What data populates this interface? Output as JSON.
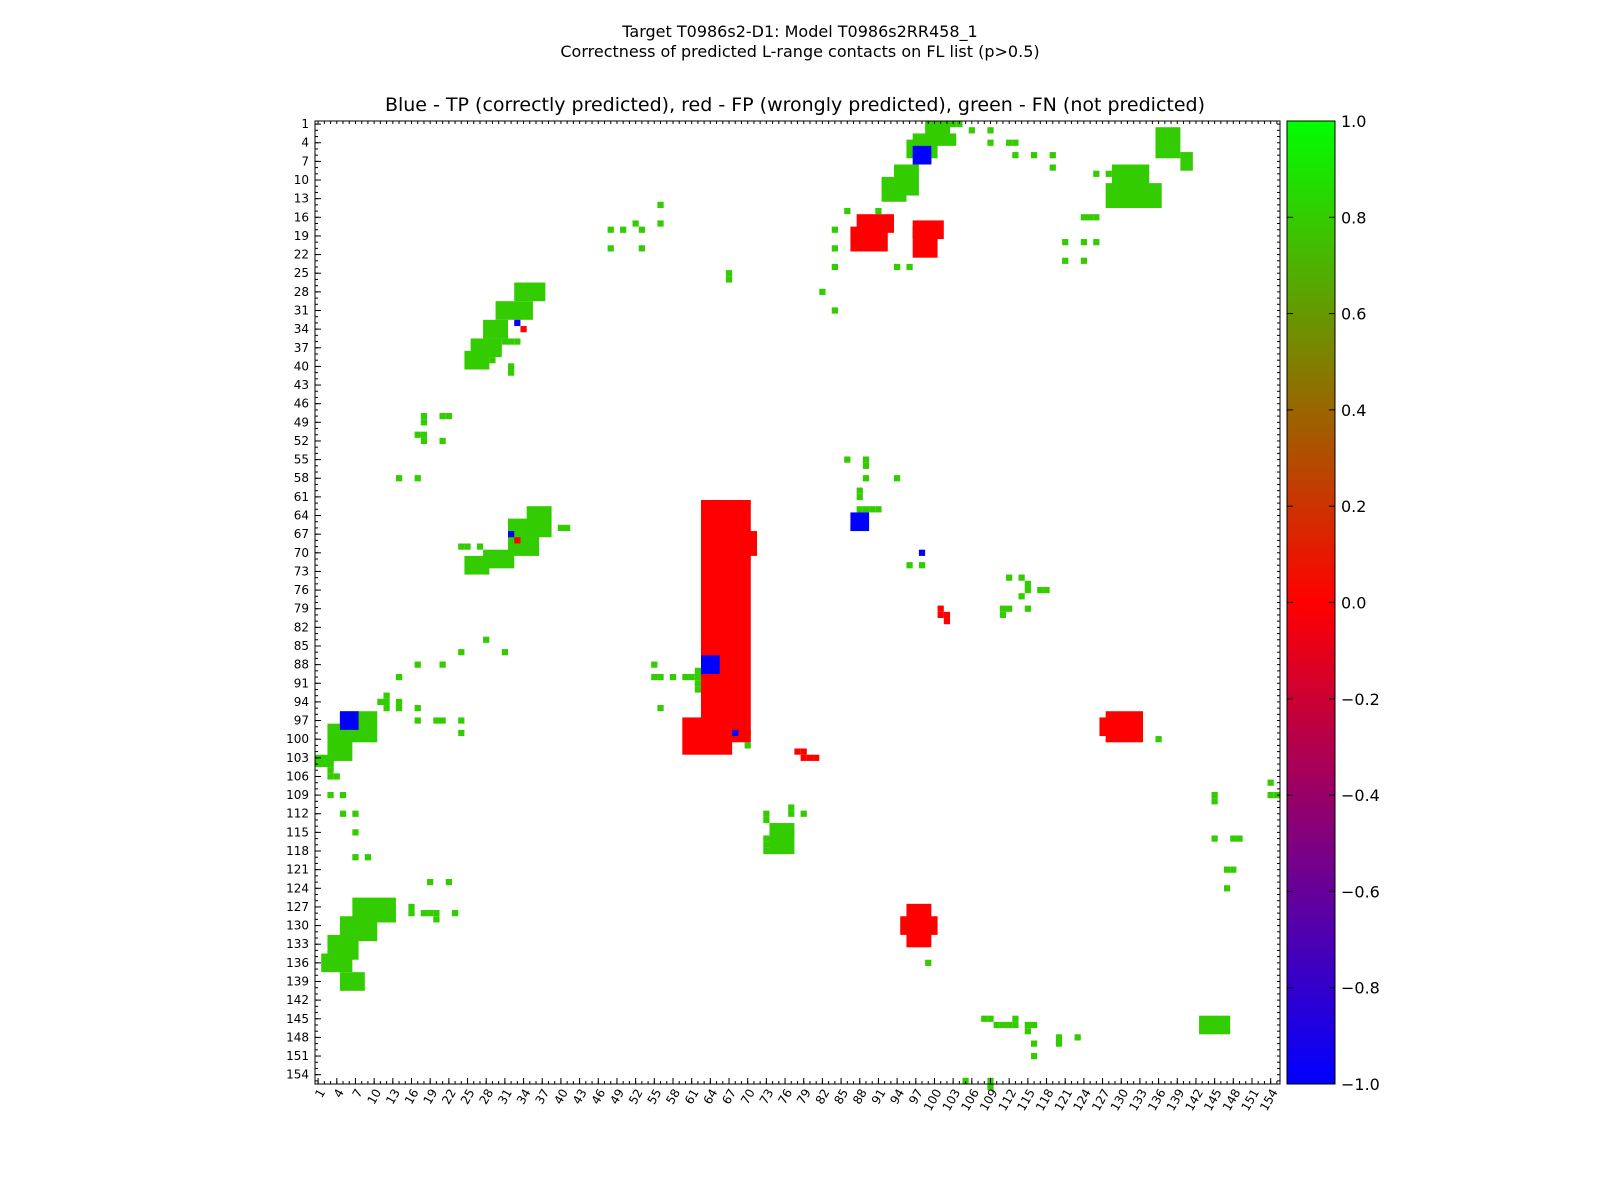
{
  "figure": {
    "title_line1": "Target T0986s2-D1: Model T0986s2RR458_1",
    "title_line2": "Correctness of predicted L-range contacts on FL list (p>0.5)"
  },
  "colors": {
    "tp": "#0000ff",
    "fp": "#ff0000",
    "fn": "#33cc00",
    "background": "#ffffff"
  },
  "chart_data": {
    "type": "heatmap",
    "title": "Blue - TP (correctly predicted), red - FP (wrongly predicted), green - FN (not predicted)",
    "xlabel": "",
    "ylabel": "",
    "xlim": [
      1,
      155
    ],
    "ylim": [
      1,
      155
    ],
    "x_ticks": [
      "1",
      "4",
      "7",
      "10",
      "13",
      "16",
      "19",
      "22",
      "25",
      "28",
      "31",
      "34",
      "37",
      "40",
      "43",
      "46",
      "49",
      "52",
      "55",
      "58",
      "61",
      "64",
      "67",
      "70",
      "73",
      "76",
      "79",
      "82",
      "85",
      "88",
      "91",
      "94",
      "97",
      "100",
      "103",
      "106",
      "109",
      "112",
      "115",
      "118",
      "121",
      "124",
      "127",
      "130",
      "133",
      "136",
      "139",
      "142",
      "145",
      "148",
      "151",
      "154"
    ],
    "y_ticks": [
      "1",
      "4",
      "7",
      "10",
      "13",
      "16",
      "19",
      "22",
      "25",
      "28",
      "31",
      "34",
      "37",
      "40",
      "43",
      "46",
      "49",
      "52",
      "55",
      "58",
      "61",
      "64",
      "67",
      "70",
      "73",
      "76",
      "79",
      "82",
      "85",
      "88",
      "91",
      "94",
      "97",
      "100",
      "103",
      "106",
      "109",
      "112",
      "115",
      "118",
      "121",
      "124",
      "127",
      "130",
      "133",
      "136",
      "139",
      "142",
      "145",
      "148",
      "151",
      "154"
    ],
    "colorbar": {
      "range": [
        -1.0,
        1.0
      ],
      "ticks": [
        "1.0",
        "0.8",
        "0.6",
        "0.4",
        "0.2",
        "0.0",
        "−0.2",
        "−0.4",
        "−0.6",
        "−0.8",
        "−1.0"
      ]
    },
    "rect_cells": {
      "fp": [
        [
          97,
          17,
          101,
          19
        ],
        [
          97,
          18,
          100,
          22
        ],
        [
          127,
          97,
          131,
          99
        ],
        [
          128,
          96,
          133,
          100
        ],
        [
          60,
          97,
          67,
          102
        ],
        [
          63,
          62,
          70,
          100
        ],
        [
          63,
          64,
          65,
          67
        ],
        [
          63,
          67,
          71,
          70
        ],
        [
          88,
          16,
          93,
          18
        ],
        [
          87,
          18,
          92,
          21
        ],
        [
          96,
          127,
          99,
          133
        ],
        [
          95,
          129,
          100,
          131
        ]
      ],
      "fn": [
        [
          99,
          1,
          102,
          3
        ],
        [
          97,
          3,
          103,
          4
        ],
        [
          96,
          4,
          100,
          6
        ],
        [
          94,
          8,
          97,
          12
        ],
        [
          92,
          10,
          95,
          13
        ],
        [
          128,
          11,
          136,
          14
        ],
        [
          129,
          8,
          134,
          12
        ],
        [
          136,
          2,
          139,
          6
        ],
        [
          140,
          6,
          141,
          8
        ],
        [
          33,
          27,
          37,
          29
        ],
        [
          30,
          30,
          35,
          32
        ],
        [
          28,
          33,
          31,
          35
        ],
        [
          26,
          36,
          30,
          38
        ],
        [
          25,
          38,
          28,
          40
        ],
        [
          35,
          63,
          38,
          67
        ],
        [
          32,
          65,
          36,
          70
        ],
        [
          28,
          70,
          32,
          72
        ],
        [
          25,
          71,
          28,
          73
        ],
        [
          5,
          96,
          10,
          100
        ],
        [
          3,
          98,
          6,
          103
        ],
        [
          1,
          103,
          3,
          104
        ],
        [
          7,
          126,
          13,
          129
        ],
        [
          5,
          129,
          10,
          132
        ],
        [
          3,
          132,
          7,
          135
        ],
        [
          2,
          135,
          6,
          137
        ],
        [
          5,
          138,
          8,
          140
        ],
        [
          74,
          114,
          77,
          118
        ],
        [
          143,
          145,
          147,
          147
        ]
      ],
      "tp": [
        [
          97,
          5,
          99,
          7
        ],
        [
          5,
          96,
          7,
          98
        ],
        [
          87,
          64,
          89,
          66
        ],
        [
          63,
          87,
          65,
          89
        ]
      ]
    },
    "fn_points": [
      [
        103,
        1
      ],
      [
        104,
        1
      ],
      [
        106,
        2
      ],
      [
        109,
        2
      ],
      [
        109,
        4
      ],
      [
        112,
        4
      ],
      [
        113,
        4
      ],
      [
        113,
        6
      ],
      [
        116,
        6
      ],
      [
        119,
        6
      ],
      [
        119,
        8
      ],
      [
        126,
        9
      ],
      [
        128,
        9
      ],
      [
        124,
        16
      ],
      [
        125,
        16
      ],
      [
        126,
        16
      ],
      [
        121,
        20
      ],
      [
        124,
        20
      ],
      [
        126,
        20
      ],
      [
        121,
        23
      ],
      [
        124,
        23
      ],
      [
        86,
        15
      ],
      [
        91,
        15
      ],
      [
        84,
        18
      ],
      [
        89,
        18
      ],
      [
        84,
        21
      ],
      [
        84,
        24
      ],
      [
        94,
        24
      ],
      [
        96,
        24
      ],
      [
        82,
        28
      ],
      [
        84,
        31
      ],
      [
        67,
        25
      ],
      [
        67,
        26
      ],
      [
        56,
        14
      ],
      [
        56,
        17
      ],
      [
        48,
        18
      ],
      [
        50,
        18
      ],
      [
        53,
        18
      ],
      [
        48,
        21
      ],
      [
        53,
        21
      ],
      [
        52,
        17
      ],
      [
        29,
        38
      ],
      [
        29,
        39
      ],
      [
        30,
        37
      ],
      [
        31,
        36
      ],
      [
        32,
        36
      ],
      [
        33,
        36
      ],
      [
        32,
        40
      ],
      [
        32,
        41
      ],
      [
        18,
        48
      ],
      [
        21,
        48
      ],
      [
        22,
        48
      ],
      [
        18,
        49
      ],
      [
        17,
        51
      ],
      [
        18,
        51
      ],
      [
        18,
        52
      ],
      [
        21,
        52
      ],
      [
        14,
        58
      ],
      [
        17,
        58
      ],
      [
        86,
        55
      ],
      [
        89,
        55
      ],
      [
        89,
        56
      ],
      [
        89,
        58
      ],
      [
        94,
        58
      ],
      [
        88,
        60
      ],
      [
        88,
        61
      ],
      [
        88,
        63
      ],
      [
        89,
        63
      ],
      [
        90,
        63
      ],
      [
        91,
        63
      ],
      [
        87,
        66
      ],
      [
        88,
        66
      ],
      [
        40,
        66
      ],
      [
        41,
        66
      ],
      [
        24,
        69
      ],
      [
        25,
        69
      ],
      [
        27,
        69
      ],
      [
        96,
        72
      ],
      [
        98,
        72
      ],
      [
        112,
        74
      ],
      [
        114,
        74
      ],
      [
        115,
        75
      ],
      [
        117,
        76
      ],
      [
        118,
        76
      ],
      [
        115,
        76
      ],
      [
        114,
        77
      ],
      [
        111,
        79
      ],
      [
        112,
        79
      ],
      [
        115,
        79
      ],
      [
        111,
        80
      ],
      [
        28,
        84
      ],
      [
        24,
        86
      ],
      [
        31,
        86
      ],
      [
        17,
        88
      ],
      [
        21,
        88
      ],
      [
        14,
        90
      ],
      [
        55,
        88
      ],
      [
        55,
        90
      ],
      [
        56,
        90
      ],
      [
        58,
        90
      ],
      [
        60,
        90
      ],
      [
        61,
        90
      ],
      [
        62,
        89
      ],
      [
        62,
        90
      ],
      [
        62,
        91
      ],
      [
        62,
        92
      ],
      [
        65,
        90
      ],
      [
        56,
        95
      ],
      [
        11,
        94
      ],
      [
        12,
        93
      ],
      [
        12,
        94
      ],
      [
        12,
        95
      ],
      [
        14,
        94
      ],
      [
        14,
        95
      ],
      [
        17,
        95
      ],
      [
        17,
        97
      ],
      [
        20,
        97
      ],
      [
        21,
        97
      ],
      [
        24,
        97
      ],
      [
        24,
        99
      ],
      [
        70,
        99
      ],
      [
        70,
        101
      ],
      [
        129,
        97
      ],
      [
        136,
        100
      ],
      [
        3,
        103
      ],
      [
        3,
        104
      ],
      [
        3,
        105
      ],
      [
        3,
        106
      ],
      [
        4,
        106
      ],
      [
        3,
        109
      ],
      [
        5,
        109
      ],
      [
        5,
        112
      ],
      [
        7,
        112
      ],
      [
        7,
        115
      ],
      [
        7,
        119
      ],
      [
        9,
        119
      ],
      [
        19,
        123
      ],
      [
        22,
        123
      ],
      [
        16,
        127
      ],
      [
        16,
        128
      ],
      [
        18,
        128
      ],
      [
        19,
        128
      ],
      [
        20,
        128
      ],
      [
        20,
        129
      ],
      [
        23,
        128
      ],
      [
        96,
        130
      ],
      [
        99,
        136
      ],
      [
        73,
        112
      ],
      [
        73,
        113
      ],
      [
        77,
        111
      ],
      [
        77,
        112
      ],
      [
        79,
        112
      ],
      [
        74,
        115
      ],
      [
        75,
        115
      ],
      [
        76,
        115
      ],
      [
        77,
        115
      ],
      [
        74,
        116
      ],
      [
        73,
        116
      ],
      [
        73,
        117
      ],
      [
        73,
        118
      ],
      [
        74,
        118
      ],
      [
        145,
        109
      ],
      [
        145,
        110
      ],
      [
        145,
        116
      ],
      [
        148,
        116
      ],
      [
        149,
        116
      ],
      [
        147,
        121
      ],
      [
        148,
        121
      ],
      [
        147,
        124
      ],
      [
        154,
        107
      ],
      [
        154,
        109
      ],
      [
        155,
        109
      ],
      [
        108,
        145
      ],
      [
        109,
        145
      ],
      [
        110,
        146
      ],
      [
        111,
        146
      ],
      [
        112,
        146
      ],
      [
        113,
        146
      ],
      [
        113,
        145
      ],
      [
        115,
        146
      ],
      [
        116,
        146
      ],
      [
        115,
        147
      ],
      [
        116,
        149
      ],
      [
        116,
        151
      ],
      [
        120,
        148
      ],
      [
        120,
        149
      ],
      [
        123,
        148
      ],
      [
        105,
        155
      ],
      [
        109,
        155
      ],
      [
        109,
        156
      ]
    ],
    "fp_points": [
      [
        64,
        63
      ],
      [
        99,
        7
      ],
      [
        34,
        34
      ],
      [
        33,
        68
      ],
      [
        7,
        98
      ],
      [
        63,
        87
      ],
      [
        65,
        62
      ],
      [
        101,
        79
      ],
      [
        101,
        80
      ],
      [
        102,
        80
      ],
      [
        102,
        81
      ],
      [
        78,
        102
      ],
      [
        79,
        102
      ],
      [
        79,
        103
      ],
      [
        80,
        103
      ],
      [
        81,
        103
      ]
    ],
    "tp_points": [
      [
        33,
        33
      ],
      [
        32,
        67
      ],
      [
        68,
        99
      ],
      [
        98,
        70
      ],
      [
        63,
        88
      ]
    ]
  }
}
